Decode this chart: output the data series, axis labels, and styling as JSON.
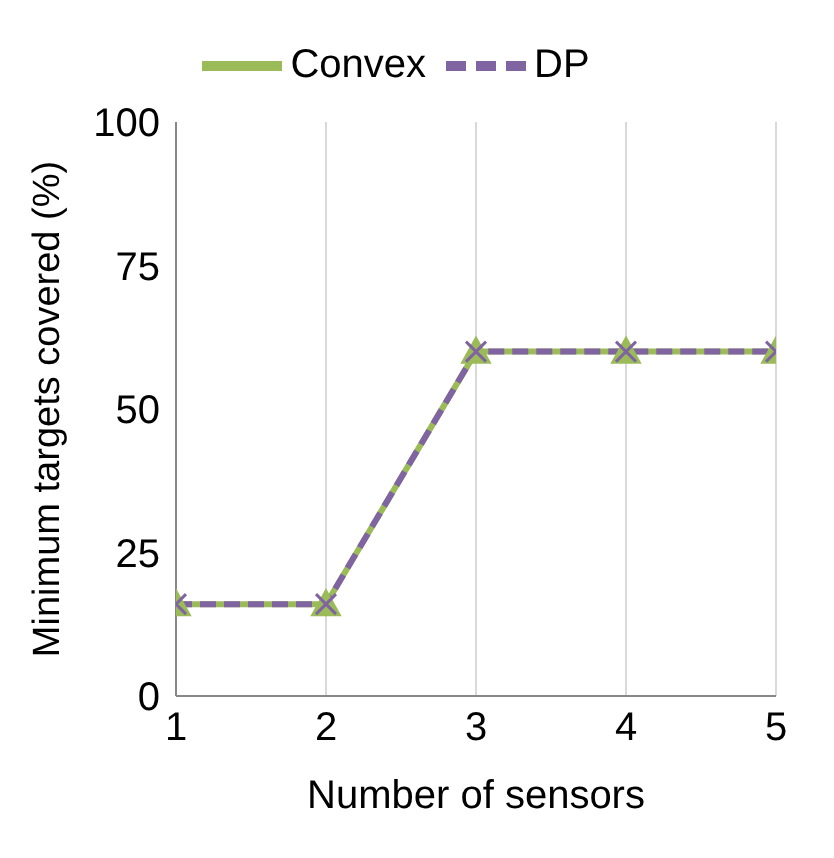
{
  "chart_data": {
    "type": "line",
    "xlabel": "Number of sensors",
    "ylabel": "Minimum targets covered (%)",
    "x": [
      1,
      2,
      3,
      4,
      5
    ],
    "series": [
      {
        "name": "Convex",
        "color": "#9bbb59",
        "values": [
          16,
          16,
          60,
          60,
          60
        ],
        "marker": "triangle",
        "line_style": "solid"
      },
      {
        "name": "DP",
        "color": "#8064a2",
        "values": [
          16,
          16,
          60,
          60,
          60
        ],
        "marker": "cross",
        "line_style": "dashed"
      }
    ],
    "xlim": [
      1,
      5
    ],
    "xticks": [
      1,
      2,
      3,
      4,
      5
    ],
    "ylim": [
      0,
      100
    ],
    "yticks": [
      0,
      25,
      50,
      75,
      100
    ],
    "grid": "x",
    "legend": "top"
  }
}
